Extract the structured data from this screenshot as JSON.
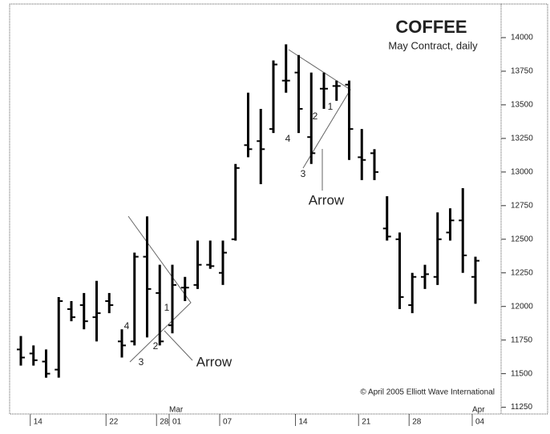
{
  "chart_data": {
    "type": "ohlc",
    "title": "COFFEE",
    "subtitle": "May Contract, daily",
    "credit": "© April 2005 Elliott Wave International",
    "color": "#000000",
    "categories": [
      null,
      "14",
      null,
      null,
      null,
      null,
      null,
      "22",
      null,
      null,
      null,
      "28",
      "01",
      null,
      null,
      null,
      "07",
      null,
      null,
      null,
      null,
      null,
      "14",
      null,
      null,
      null,
      null,
      "21",
      null,
      null,
      null,
      "28",
      null,
      null,
      null,
      null,
      "04"
    ],
    "months": [
      null,
      null,
      null,
      null,
      null,
      null,
      null,
      null,
      null,
      null,
      null,
      null,
      "Mar",
      null,
      null,
      null,
      null,
      null,
      null,
      null,
      null,
      null,
      null,
      null,
      null,
      null,
      null,
      null,
      null,
      null,
      null,
      null,
      null,
      null,
      null,
      null,
      "Apr"
    ],
    "open": [
      11680,
      11650,
      11590,
      11530,
      11980,
      12010,
      11920,
      12040,
      11740,
      11740,
      12370,
      12100,
      11860,
      12140,
      12160,
      12310,
      12250,
      12500,
      13200,
      13230,
      13320,
      13680,
      13740,
      13260,
      13620,
      13640,
      13650,
      13110,
      13140,
      12580,
      12500,
      12010,
      12220,
      12220,
      12550,
      12640,
      12220
    ],
    "high": [
      11780,
      11710,
      11680,
      12070,
      12040,
      12100,
      12190,
      12100,
      11830,
      12400,
      12670,
      12310,
      12310,
      12220,
      12490,
      12490,
      12490,
      13060,
      13590,
      13470,
      13830,
      13950,
      13870,
      13740,
      13740,
      13680,
      13680,
      13320,
      13170,
      12820,
      12550,
      12250,
      12310,
      12700,
      12730,
      12880,
      12370
    ],
    "low": [
      11560,
      11560,
      11470,
      11470,
      11890,
      11830,
      11740,
      11950,
      11620,
      11710,
      11770,
      11710,
      11800,
      12040,
      12130,
      12280,
      12160,
      12490,
      13110,
      12910,
      13290,
      13590,
      13290,
      13060,
      13470,
      13530,
      13090,
      12940,
      12940,
      12490,
      11980,
      11950,
      12130,
      12160,
      12490,
      12250,
      12020
    ],
    "close": [
      11620,
      11600,
      11500,
      12040,
      11920,
      11890,
      11950,
      12010,
      11710,
      12370,
      12130,
      11740,
      12160,
      12140,
      12310,
      12300,
      12400,
      13030,
      13170,
      13170,
      13800,
      13680,
      13470,
      13140,
      13620,
      13640,
      13320,
      13090,
      13000,
      12520,
      12070,
      12220,
      12240,
      12500,
      12640,
      12380,
      12340
    ],
    "ylim": [
      11200,
      14250
    ],
    "yticks": [
      11250,
      11500,
      11750,
      12000,
      12250,
      12500,
      12750,
      13000,
      13250,
      13500,
      13750,
      14000
    ],
    "annotations": [
      "4",
      "2",
      "3",
      "1",
      "Arrow",
      "4",
      "2",
      "3",
      "1",
      "Arrow"
    ]
  }
}
